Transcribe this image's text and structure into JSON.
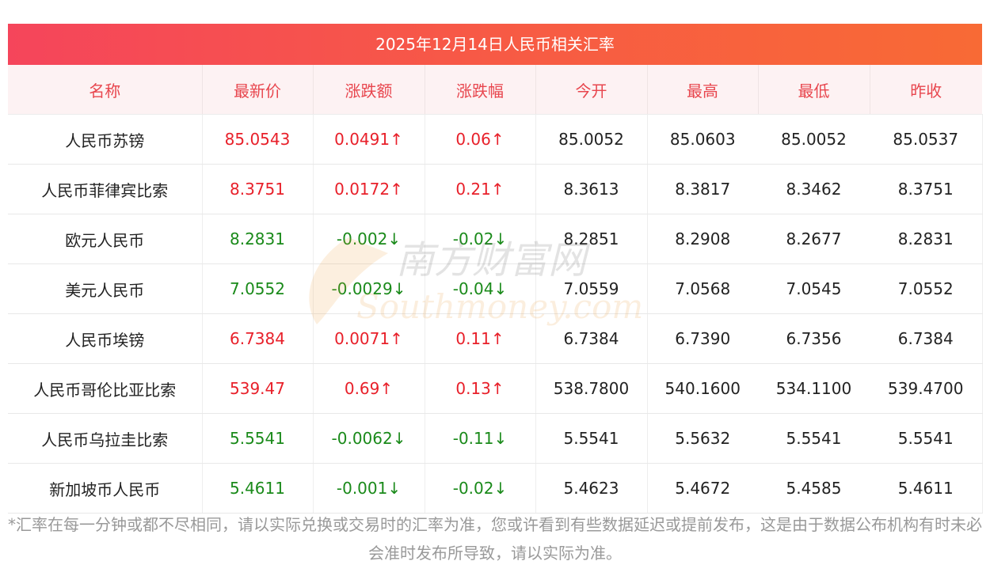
{
  "title": "2025年12月14日人民币相关汇率",
  "headers": [
    "名称",
    "最新价",
    "涨跌额",
    "涨跌幅",
    "今开",
    "最高",
    "最低",
    "昨收"
  ],
  "rows": [
    {
      "name": "人民币苏镑",
      "latest": "85.0543",
      "change": "0.0491↑",
      "pct": "0.06↑",
      "open": "85.0052",
      "high": "85.0603",
      "low": "85.0052",
      "prev": "85.0537",
      "dir": "up"
    },
    {
      "name": "人民币菲律宾比索",
      "latest": "8.3751",
      "change": "0.0172↑",
      "pct": "0.21↑",
      "open": "8.3613",
      "high": "8.3817",
      "low": "8.3462",
      "prev": "8.3751",
      "dir": "up"
    },
    {
      "name": "欧元人民币",
      "latest": "8.2831",
      "change": "-0.002↓",
      "pct": "-0.02↓",
      "open": "8.2851",
      "high": "8.2908",
      "low": "8.2677",
      "prev": "8.2831",
      "dir": "down"
    },
    {
      "name": "美元人民币",
      "latest": "7.0552",
      "change": "-0.0029↓",
      "pct": "-0.04↓",
      "open": "7.0559",
      "high": "7.0568",
      "low": "7.0545",
      "prev": "7.0552",
      "dir": "down"
    },
    {
      "name": "人民币埃镑",
      "latest": "6.7384",
      "change": "0.0071↑",
      "pct": "0.11↑",
      "open": "6.7384",
      "high": "6.7390",
      "low": "6.7356",
      "prev": "6.7384",
      "dir": "up"
    },
    {
      "name": "人民币哥伦比亚比索",
      "latest": "539.47",
      "change": "0.69↑",
      "pct": "0.13↑",
      "open": "538.7800",
      "high": "540.1600",
      "low": "534.1100",
      "prev": "539.4700",
      "dir": "up"
    },
    {
      "name": "人民币乌拉圭比索",
      "latest": "5.5541",
      "change": "-0.0062↓",
      "pct": "-0.11↓",
      "open": "5.5541",
      "high": "5.5632",
      "low": "5.5541",
      "prev": "5.5541",
      "dir": "down"
    },
    {
      "name": "新加坡币人民币",
      "latest": "5.4611",
      "change": "-0.001↓",
      "pct": "-0.02↓",
      "open": "5.4623",
      "high": "5.4672",
      "low": "5.4585",
      "prev": "5.4611",
      "dir": "down"
    }
  ],
  "note": "*汇率在每一分钟或都不尽相同，请以实际兑换或交易时的汇率为准，您或许看到有些数据延迟或提前发布，这是由于数据公布机构有时未必会准时发布所导致，请以实际为准。",
  "watermark": {
    "cn": "南方财富网",
    "en": "Southmoney.com"
  },
  "colors": {
    "up": "#e8202a",
    "down": "#1a8a1a",
    "header_text": "#e8464e"
  }
}
